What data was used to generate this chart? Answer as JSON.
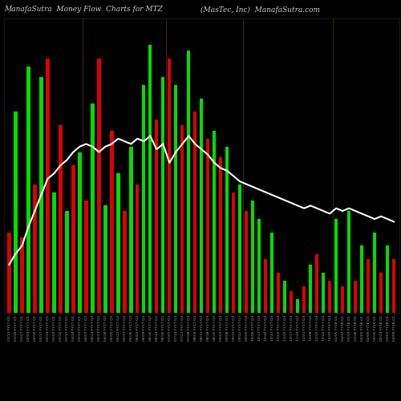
{
  "title_left": "ManafaSutra  Money Flow  Charts for MTZ",
  "title_right": "(MasTec, Inc)  ManafaSutra.com",
  "background_color": "#000000",
  "line_color": "#ffffff",
  "bar_green": "#00dd00",
  "bar_red": "#dd0000",
  "bar_dark_red": "#8b0000",
  "categories": [
    "01/13 FY17:Q1",
    "01/20 FY17:Q1",
    "01/27 FY17:Q1",
    "02/03 FY17:Q1",
    "02/10 FY17:Q1",
    "02/17 FY17:Q1",
    "02/24 FY17:Q1",
    "03/03 FY17:Q1",
    "03/10 FY17:Q1",
    "03/17 FY17:Q1",
    "03/24 FY17:Q1",
    "03/31 FY17:Q1",
    "04/07 FY17:Q2",
    "04/14 FY17:Q2",
    "04/21 FY17:Q2",
    "04/28 FY17:Q2",
    "05/05 FY17:Q2",
    "05/12 FY17:Q2",
    "05/19 FY17:Q2",
    "05/26 FY17:Q2",
    "06/02 FY17:Q2",
    "06/09 FY17:Q2",
    "06/16 FY17:Q2",
    "06/23 FY17:Q2",
    "06/30 FY17:Q2",
    "07/07 FY17:Q3",
    "07/14 FY17:Q3",
    "07/21 FY17:Q3",
    "07/28 FY17:Q3",
    "08/04 FY17:Q3",
    "08/11 FY17:Q3",
    "08/18 FY17:Q3",
    "08/25 FY17:Q3",
    "09/01 FY17:Q3",
    "09/08 FY17:Q3",
    "09/15 FY17:Q3",
    "09/22 FY17:Q3",
    "09/29 FY17:Q4",
    "10/06 FY17:Q4",
    "10/13 FY17:Q4",
    "10/20 FY17:Q4",
    "10/27 FY17:Q4",
    "11/03 FY17:Q4",
    "11/10 FY17:Q4",
    "11/17 FY17:Q4",
    "11/24 FY17:Q4",
    "12/01 FY17:Q4",
    "12/08 FY17:Q4",
    "12/15 FY17:Q4",
    "12/22 FY17:Q4",
    "12/29 FY17:Q4",
    "01/05 FY18:Q1",
    "01/12 FY18:Q1",
    "01/19 FY18:Q1",
    "01/26 FY18:Q1",
    "02/02 FY18:Q1",
    "02/09 FY18:Q1",
    "02/16 FY18:Q1",
    "02/23 FY18:Q1",
    "03/02 FY18:Q1",
    "03/09 FY18:Q1"
  ],
  "values": [
    30,
    75,
    28,
    92,
    48,
    88,
    95,
    45,
    70,
    38,
    55,
    60,
    42,
    78,
    95,
    40,
    68,
    52,
    38,
    62,
    48,
    85,
    100,
    72,
    88,
    95,
    85,
    70,
    98,
    75,
    80,
    65,
    68,
    58,
    62,
    45,
    48,
    38,
    42,
    35,
    20,
    30,
    15,
    12,
    8,
    5,
    10,
    18,
    22,
    15,
    12,
    35,
    10,
    38,
    12,
    25,
    20,
    30,
    15,
    25,
    20
  ],
  "bar_colors": [
    "red",
    "green",
    "red",
    "green",
    "red",
    "green",
    "red",
    "green",
    "red",
    "green",
    "red",
    "green",
    "red",
    "green",
    "red",
    "green",
    "red",
    "green",
    "red",
    "green",
    "red",
    "green",
    "green",
    "red",
    "green",
    "red",
    "green",
    "red",
    "green",
    "red",
    "green",
    "red",
    "green",
    "red",
    "green",
    "red",
    "green",
    "red",
    "green",
    "green",
    "red",
    "green",
    "red",
    "green",
    "red",
    "green",
    "red",
    "green",
    "red",
    "green",
    "red",
    "green",
    "red",
    "green",
    "red",
    "green",
    "red",
    "green",
    "red",
    "green",
    "red"
  ],
  "line_values": [
    18,
    22,
    25,
    32,
    38,
    44,
    50,
    52,
    55,
    57,
    60,
    62,
    63,
    62,
    60,
    62,
    63,
    65,
    64,
    63,
    65,
    64,
    66,
    61,
    63,
    56,
    60,
    63,
    66,
    63,
    61,
    59,
    56,
    54,
    53,
    51,
    49,
    48,
    47,
    46,
    45,
    44,
    43,
    42,
    41,
    40,
    39,
    40,
    39,
    38,
    37,
    39,
    38,
    39,
    38,
    37,
    36,
    35,
    36,
    35,
    34
  ],
  "ylim_max": 110
}
